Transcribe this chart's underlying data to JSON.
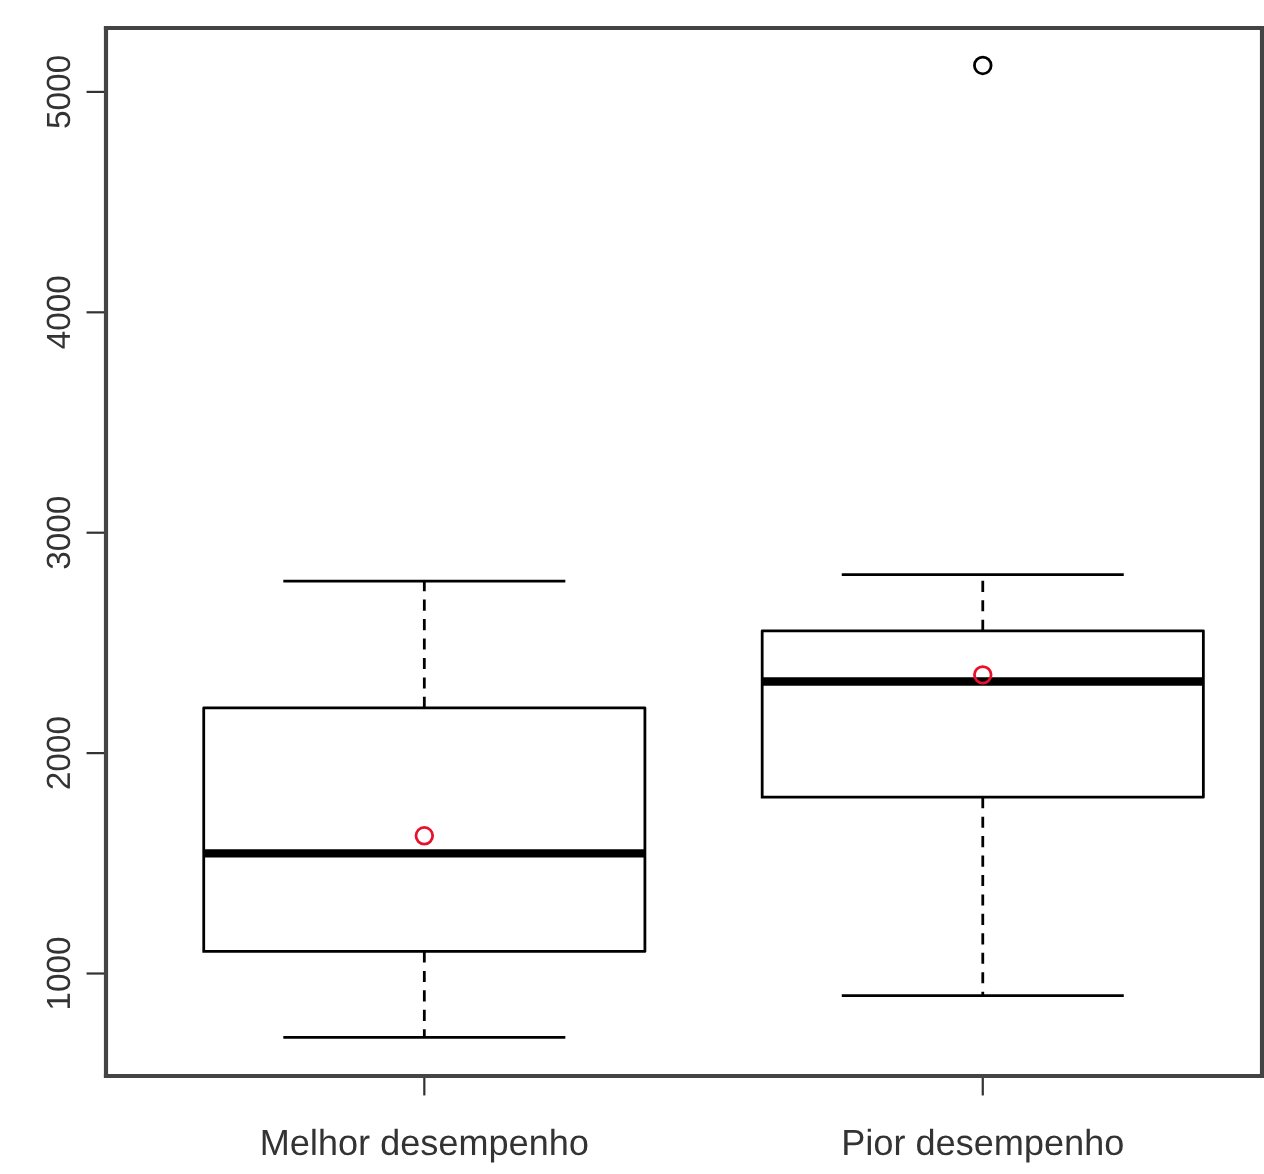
{
  "chart_data": {
    "type": "box",
    "categories": [
      "Melhor desempenho",
      "Pior desempenho"
    ],
    "boxes": [
      {
        "low": 710,
        "q1": 1100,
        "median": 1545,
        "q3": 2205,
        "high": 2780,
        "mean": 1625
      },
      {
        "low": 900,
        "q1": 1800,
        "median": 2325,
        "q3": 2555,
        "high": 2810,
        "mean": 2355,
        "outliers": [
          5120
        ]
      }
    ],
    "ylim": [
      535,
      5290
    ],
    "yticks": [
      1000,
      2000,
      3000,
      4000,
      5000
    ],
    "grid": false,
    "legend": false
  }
}
